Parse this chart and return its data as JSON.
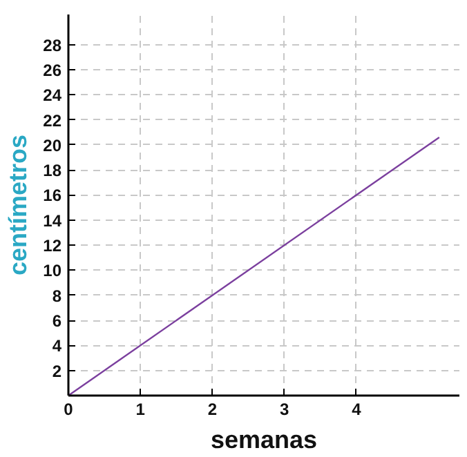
{
  "chart_data": {
    "type": "line",
    "xlabel": "semanas",
    "ylabel": "centímetros",
    "x": [
      0,
      5.15
    ],
    "series": [
      {
        "color": "#7b3f9e",
        "values": [
          0,
          20.6
        ]
      }
    ],
    "xlim": [
      0,
      5.43
    ],
    "ylim": [
      0,
      30.4
    ],
    "xticks": [
      0,
      1,
      2,
      3,
      4
    ],
    "yticks": [
      2,
      4,
      6,
      8,
      10,
      12,
      14,
      16,
      18,
      20,
      22,
      24,
      26,
      28
    ],
    "grid": true,
    "line_style": "solid",
    "marker": "none"
  }
}
